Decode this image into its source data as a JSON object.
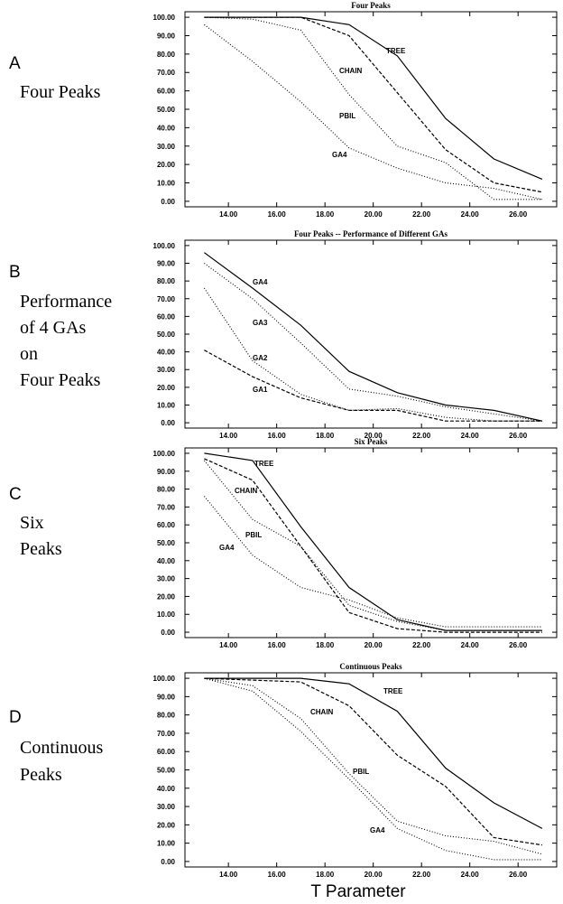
{
  "x_axis_label": "T Parameter",
  "colors": {
    "line": "#000000",
    "background": "#ffffff"
  },
  "panels": [
    {
      "letter": "A",
      "caption": [
        "Four Peaks"
      ],
      "title": "Four Peaks",
      "ytick_labels": [
        "0.00",
        "10.00",
        "20.00",
        "30.00",
        "40.00",
        "50.00",
        "60.00",
        "70.00",
        "80.00",
        "90.00",
        "100.00"
      ],
      "xtick_labels": [
        "14.00",
        "16.00",
        "18.00",
        "20.00",
        "22.00",
        "24.00",
        "26.00"
      ]
    },
    {
      "letter": "B",
      "caption": [
        "Performance",
        "of 4 GAs",
        "on",
        "Four Peaks"
      ],
      "title": "Four Peaks -- Performance of Different GAs",
      "ytick_labels": [
        "0.00",
        "10.00",
        "20.00",
        "30.00",
        "40.00",
        "50.00",
        "60.00",
        "70.00",
        "80.00",
        "90.00",
        "100.00"
      ],
      "xtick_labels": [
        "14.00",
        "16.00",
        "18.00",
        "20.00",
        "22.00",
        "24.00",
        "26.00"
      ]
    },
    {
      "letter": "C",
      "caption": [
        "Six",
        "Peaks"
      ],
      "title": "Six Peaks",
      "ytick_labels": [
        "0.00",
        "10.00",
        "20.00",
        "30.00",
        "40.00",
        "50.00",
        "60.00",
        "70.00",
        "80.00",
        "90.00",
        "100.00"
      ],
      "xtick_labels": [
        "14.00",
        "16.00",
        "18.00",
        "20.00",
        "22.00",
        "24.00",
        "26.00"
      ]
    },
    {
      "letter": "D",
      "caption": [
        "Continuous",
        "Peaks"
      ],
      "title": "Continuous Peaks",
      "ytick_labels": [
        "0.00",
        "10.00",
        "20.00",
        "30.00",
        "40.00",
        "50.00",
        "60.00",
        "70.00",
        "80.00",
        "90.00",
        "100.00"
      ],
      "xtick_labels": [
        "14.00",
        "16.00",
        "18.00",
        "20.00",
        "22.00",
        "24.00",
        "26.00"
      ]
    }
  ],
  "chart_data": [
    {
      "type": "line",
      "title": "Four Peaks",
      "xlim": [
        12.2,
        27.6
      ],
      "ylim": [
        -3,
        103
      ],
      "xticks": [
        14,
        16,
        18,
        20,
        22,
        24,
        26
      ],
      "yticks": [
        0,
        10,
        20,
        30,
        40,
        50,
        60,
        70,
        80,
        90,
        100
      ],
      "series": [
        {
          "name": "TREE",
          "style": "solid",
          "x": [
            13,
            15,
            17,
            19,
            21,
            23,
            25,
            27
          ],
          "y": [
            100,
            100,
            100,
            96,
            79,
            45,
            23,
            12
          ]
        },
        {
          "name": "CHAIN",
          "style": "dashed",
          "x": [
            13,
            15,
            17,
            19,
            21,
            23,
            25,
            27
          ],
          "y": [
            100,
            100,
            100,
            90,
            59,
            28,
            10,
            5
          ]
        },
        {
          "name": "PBIL",
          "style": "dotted",
          "x": [
            13,
            15,
            17,
            19,
            21,
            23,
            25,
            27
          ],
          "y": [
            100,
            99,
            93,
            58,
            30,
            21,
            1,
            1
          ]
        },
        {
          "name": "GA4",
          "style": "dotted",
          "x": [
            13,
            15,
            17,
            19,
            21,
            23,
            25,
            27
          ],
          "y": [
            96,
            76,
            54,
            29,
            18,
            10,
            7,
            1
          ]
        }
      ]
    },
    {
      "type": "line",
      "title": "Four Peaks -- Performance of Different GAs",
      "xlim": [
        12.2,
        27.6
      ],
      "ylim": [
        -3,
        103
      ],
      "xticks": [
        14,
        16,
        18,
        20,
        22,
        24,
        26
      ],
      "yticks": [
        0,
        10,
        20,
        30,
        40,
        50,
        60,
        70,
        80,
        90,
        100
      ],
      "series": [
        {
          "name": "GA4",
          "style": "solid",
          "x": [
            13,
            15,
            17,
            19,
            21,
            23,
            25,
            27
          ],
          "y": [
            96,
            76,
            55,
            29,
            17,
            10,
            7,
            1
          ]
        },
        {
          "name": "GA3",
          "style": "dotted",
          "x": [
            13,
            15,
            17,
            19,
            21,
            23,
            25,
            27
          ],
          "y": [
            90,
            70,
            45,
            19,
            15,
            9,
            5,
            1
          ]
        },
        {
          "name": "GA2",
          "style": "dotted",
          "x": [
            13,
            15,
            17,
            19,
            21,
            23,
            25,
            27
          ],
          "y": [
            76,
            35,
            16,
            7,
            8,
            3,
            1,
            1
          ]
        },
        {
          "name": "GA1",
          "style": "dashed",
          "x": [
            13,
            15,
            17,
            19,
            21,
            23,
            25,
            27
          ],
          "y": [
            41,
            26,
            14,
            7,
            7,
            1,
            1,
            1
          ]
        }
      ]
    },
    {
      "type": "line",
      "title": "Six Peaks",
      "xlim": [
        12.2,
        27.6
      ],
      "ylim": [
        -3,
        103
      ],
      "xticks": [
        14,
        16,
        18,
        20,
        22,
        24,
        26
      ],
      "yticks": [
        0,
        10,
        20,
        30,
        40,
        50,
        60,
        70,
        80,
        90,
        100
      ],
      "series": [
        {
          "name": "TREE",
          "style": "solid",
          "x": [
            13,
            15,
            17,
            19,
            21,
            23,
            25,
            27
          ],
          "y": [
            100,
            96,
            59,
            25,
            7,
            1,
            1,
            1
          ]
        },
        {
          "name": "CHAIN",
          "style": "dashed",
          "x": [
            13,
            15,
            17,
            19,
            21,
            23,
            25,
            27
          ],
          "y": [
            97,
            85,
            48,
            11,
            2,
            0,
            0,
            0
          ]
        },
        {
          "name": "PBIL",
          "style": "dotted",
          "x": [
            13,
            15,
            17,
            19,
            21,
            23,
            25,
            27
          ],
          "y": [
            96,
            63,
            48,
            15,
            6,
            1,
            1,
            1
          ]
        },
        {
          "name": "GA4",
          "style": "dotted",
          "x": [
            13,
            15,
            17,
            19,
            21,
            23,
            25,
            27
          ],
          "y": [
            76,
            43,
            25,
            18,
            8,
            3,
            3,
            3
          ]
        }
      ]
    },
    {
      "type": "line",
      "title": "Continuous Peaks",
      "xlim": [
        12.2,
        27.6
      ],
      "ylim": [
        -3,
        103
      ],
      "xticks": [
        14,
        16,
        18,
        20,
        22,
        24,
        26
      ],
      "yticks": [
        0,
        10,
        20,
        30,
        40,
        50,
        60,
        70,
        80,
        90,
        100
      ],
      "series": [
        {
          "name": "TREE",
          "style": "solid",
          "x": [
            13,
            15,
            17,
            19,
            21,
            23,
            25,
            27
          ],
          "y": [
            100,
            100,
            100,
            97,
            82,
            51,
            32,
            18
          ]
        },
        {
          "name": "CHAIN",
          "style": "dashed",
          "x": [
            13,
            15,
            17,
            19,
            21,
            23,
            25,
            27
          ],
          "y": [
            100,
            99,
            98,
            85,
            58,
            41,
            13,
            9
          ]
        },
        {
          "name": "PBIL",
          "style": "dotted",
          "x": [
            13,
            15,
            17,
            19,
            21,
            23,
            25,
            27
          ],
          "y": [
            100,
            96,
            78,
            48,
            22,
            14,
            11,
            4
          ]
        },
        {
          "name": "GA4",
          "style": "dotted",
          "x": [
            13,
            15,
            17,
            19,
            21,
            23,
            25,
            27
          ],
          "y": [
            100,
            93,
            71,
            45,
            18,
            6,
            1,
            1
          ]
        }
      ]
    }
  ]
}
